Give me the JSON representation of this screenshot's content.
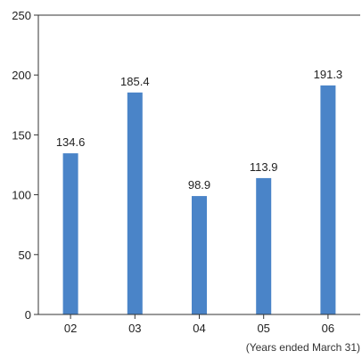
{
  "chart_data": {
    "type": "bar",
    "categories": [
      "02",
      "03",
      "04",
      "05",
      "06"
    ],
    "values": [
      134.6,
      185.4,
      98.9,
      113.9,
      191.3
    ],
    "value_labels": [
      "134.6",
      "185.4",
      "98.9",
      "113.9",
      "191.3"
    ],
    "title": "",
    "xlabel": "",
    "ylabel": "",
    "ylim": [
      0,
      250
    ],
    "yticks": [
      0,
      50,
      100,
      150,
      200,
      250
    ],
    "grid": false,
    "bar_color": "#4a84c8",
    "note": "(Years ended March 31)"
  }
}
